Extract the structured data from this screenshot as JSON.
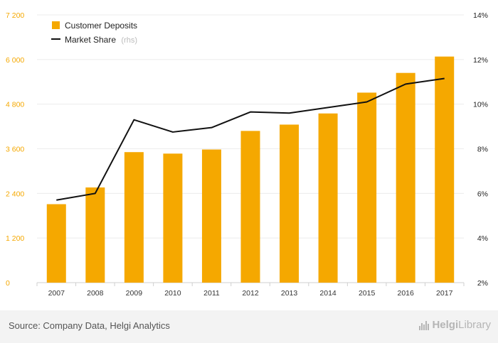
{
  "chart_data": {
    "type": "bar",
    "categories": [
      "2007",
      "2008",
      "2009",
      "2010",
      "2011",
      "2012",
      "2013",
      "2014",
      "2015",
      "2016",
      "2017"
    ],
    "series": [
      {
        "name": "Customer Deposits",
        "type": "bar",
        "axis": "left",
        "color": "#f5a800",
        "values": [
          2110,
          2560,
          3510,
          3470,
          3580,
          4080,
          4250,
          4550,
          5110,
          5640,
          6080
        ]
      },
      {
        "name": "Market Share",
        "type": "line",
        "axis": "right",
        "color": "#111111",
        "values": [
          5.7,
          6.0,
          9.3,
          8.75,
          8.95,
          9.65,
          9.6,
          9.85,
          10.1,
          10.9,
          11.15
        ]
      }
    ],
    "y_left": {
      "min": 0,
      "max": 7200,
      "ticks": [
        "0",
        "1 200",
        "2 400",
        "3 600",
        "4 800",
        "6 000",
        "7 200"
      ],
      "values": [
        0,
        1200,
        2400,
        3600,
        4800,
        6000,
        7200
      ]
    },
    "y_right": {
      "min": 2,
      "max": 14,
      "ticks": [
        "2%",
        "4%",
        "6%",
        "8%",
        "10%",
        "12%",
        "14%"
      ],
      "values": [
        2,
        4,
        6,
        8,
        10,
        12,
        14
      ]
    },
    "legend": {
      "placement": "top-left",
      "items": [
        {
          "label": "Customer Deposits",
          "note": ""
        },
        {
          "label": "Market Share",
          "note": "(rhs)"
        }
      ]
    },
    "grid": true
  },
  "footer": {
    "source": "Source: Company Data, Helgi Analytics",
    "logo_brand": "Helgi",
    "logo_rest": "Library"
  }
}
